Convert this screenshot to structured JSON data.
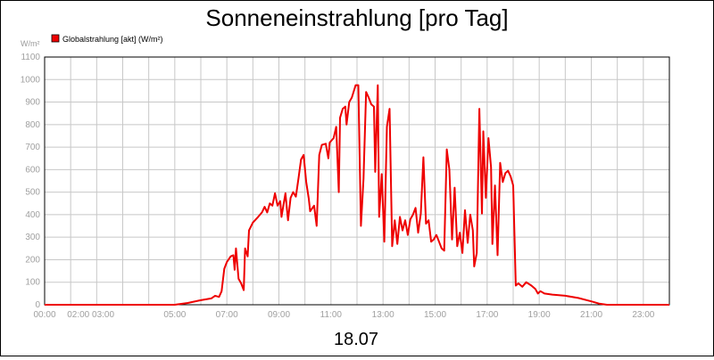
{
  "chart_data": {
    "type": "line",
    "title": "Sonneneinstrahlung [pro Tag]",
    "subtitle": "18.07",
    "ylabel": "W/m²",
    "xlabel": "",
    "ylim": [
      0,
      1100
    ],
    "xlim_hours": [
      0,
      24
    ],
    "grid": true,
    "legend_position": "top-left",
    "y_ticks": [
      "0",
      "100",
      "200",
      "300",
      "400",
      "500",
      "600",
      "700",
      "800",
      "900",
      "1000",
      "1100"
    ],
    "x_ticks": [
      {
        "hour": 0,
        "label": "00:00"
      },
      {
        "hour": 1.77,
        "label": "02:00 03:00"
      },
      {
        "hour": 5,
        "label": "05:00"
      },
      {
        "hour": 7,
        "label": "07:00"
      },
      {
        "hour": 9,
        "label": "09:00"
      },
      {
        "hour": 11,
        "label": "11:00"
      },
      {
        "hour": 13,
        "label": "13:00"
      },
      {
        "hour": 15,
        "label": "15:00"
      },
      {
        "hour": 17,
        "label": "17:00"
      },
      {
        "hour": 19,
        "label": "19:00"
      },
      {
        "hour": 21,
        "label": "21:00"
      },
      {
        "hour": 23,
        "label": "23:00"
      }
    ],
    "series": [
      {
        "name": "Globalstrahlung [akt] (W/m²)",
        "color": "#ee0000",
        "points": [
          [
            0,
            0
          ],
          [
            5.0,
            0
          ],
          [
            5.5,
            8
          ],
          [
            6.0,
            20
          ],
          [
            6.4,
            28
          ],
          [
            6.55,
            40
          ],
          [
            6.7,
            35
          ],
          [
            6.8,
            60
          ],
          [
            6.9,
            160
          ],
          [
            7.0,
            190
          ],
          [
            7.15,
            215
          ],
          [
            7.25,
            220
          ],
          [
            7.3,
            155
          ],
          [
            7.35,
            250
          ],
          [
            7.45,
            115
          ],
          [
            7.55,
            95
          ],
          [
            7.65,
            65
          ],
          [
            7.7,
            250
          ],
          [
            7.8,
            215
          ],
          [
            7.85,
            330
          ],
          [
            8.0,
            365
          ],
          [
            8.2,
            390
          ],
          [
            8.35,
            410
          ],
          [
            8.45,
            435
          ],
          [
            8.55,
            410
          ],
          [
            8.65,
            450
          ],
          [
            8.75,
            440
          ],
          [
            8.85,
            495
          ],
          [
            8.95,
            440
          ],
          [
            9.05,
            460
          ],
          [
            9.1,
            390
          ],
          [
            9.25,
            495
          ],
          [
            9.35,
            375
          ],
          [
            9.45,
            475
          ],
          [
            9.55,
            500
          ],
          [
            9.65,
            480
          ],
          [
            9.75,
            560
          ],
          [
            9.85,
            645
          ],
          [
            9.95,
            665
          ],
          [
            10.05,
            545
          ],
          [
            10.15,
            470
          ],
          [
            10.2,
            415
          ],
          [
            10.35,
            440
          ],
          [
            10.45,
            350
          ],
          [
            10.55,
            665
          ],
          [
            10.65,
            710
          ],
          [
            10.8,
            715
          ],
          [
            10.9,
            650
          ],
          [
            10.95,
            720
          ],
          [
            11.1,
            740
          ],
          [
            11.2,
            790
          ],
          [
            11.3,
            500
          ],
          [
            11.35,
            830
          ],
          [
            11.45,
            870
          ],
          [
            11.55,
            880
          ],
          [
            11.6,
            800
          ],
          [
            11.7,
            900
          ],
          [
            11.8,
            920
          ],
          [
            11.95,
            975
          ],
          [
            12.05,
            975
          ],
          [
            12.15,
            350
          ],
          [
            12.25,
            560
          ],
          [
            12.35,
            945
          ],
          [
            12.45,
            920
          ],
          [
            12.55,
            890
          ],
          [
            12.65,
            880
          ],
          [
            12.7,
            590
          ],
          [
            12.8,
            975
          ],
          [
            12.85,
            390
          ],
          [
            12.95,
            580
          ],
          [
            13.05,
            280
          ],
          [
            13.15,
            790
          ],
          [
            13.25,
            870
          ],
          [
            13.35,
            260
          ],
          [
            13.45,
            375
          ],
          [
            13.55,
            270
          ],
          [
            13.65,
            390
          ],
          [
            13.75,
            330
          ],
          [
            13.85,
            375
          ],
          [
            13.95,
            310
          ],
          [
            14.05,
            380
          ],
          [
            14.15,
            400
          ],
          [
            14.25,
            430
          ],
          [
            14.35,
            320
          ],
          [
            14.45,
            405
          ],
          [
            14.55,
            655
          ],
          [
            14.65,
            360
          ],
          [
            14.75,
            375
          ],
          [
            14.85,
            280
          ],
          [
            14.95,
            290
          ],
          [
            15.05,
            310
          ],
          [
            15.15,
            280
          ],
          [
            15.25,
            250
          ],
          [
            15.35,
            240
          ],
          [
            15.45,
            690
          ],
          [
            15.55,
            600
          ],
          [
            15.65,
            290
          ],
          [
            15.75,
            520
          ],
          [
            15.85,
            260
          ],
          [
            15.95,
            320
          ],
          [
            16.05,
            230
          ],
          [
            16.15,
            420
          ],
          [
            16.25,
            275
          ],
          [
            16.35,
            400
          ],
          [
            16.45,
            330
          ],
          [
            16.5,
            170
          ],
          [
            16.6,
            230
          ],
          [
            16.7,
            870
          ],
          [
            16.8,
            405
          ],
          [
            16.85,
            770
          ],
          [
            16.95,
            475
          ],
          [
            17.05,
            740
          ],
          [
            17.15,
            610
          ],
          [
            17.2,
            270
          ],
          [
            17.3,
            530
          ],
          [
            17.4,
            220
          ],
          [
            17.5,
            630
          ],
          [
            17.6,
            545
          ],
          [
            17.7,
            585
          ],
          [
            17.8,
            595
          ],
          [
            17.9,
            570
          ],
          [
            18.0,
            530
          ],
          [
            18.1,
            85
          ],
          [
            18.2,
            95
          ],
          [
            18.35,
            80
          ],
          [
            18.5,
            100
          ],
          [
            18.7,
            85
          ],
          [
            18.85,
            70
          ],
          [
            18.95,
            50
          ],
          [
            19.05,
            60
          ],
          [
            19.2,
            50
          ],
          [
            19.5,
            45
          ],
          [
            20.0,
            40
          ],
          [
            20.5,
            30
          ],
          [
            21.0,
            15
          ],
          [
            21.3,
            5
          ],
          [
            21.6,
            0
          ],
          [
            24.0,
            0
          ]
        ]
      }
    ]
  }
}
